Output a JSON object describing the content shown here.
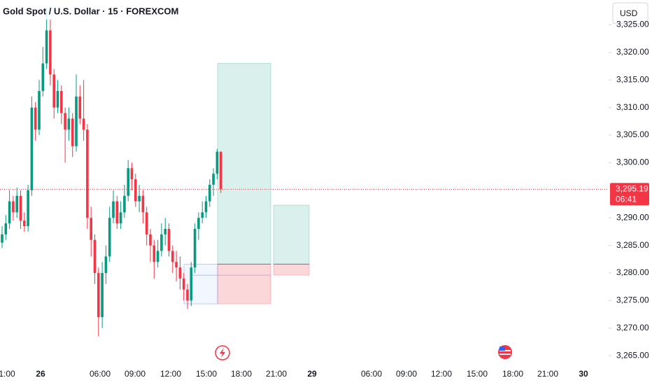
{
  "chart_data": {
    "type": "candlestick",
    "title": "Gold Spot / U.S. Dollar · 15 · FOREXCOM",
    "currency": "USD",
    "up_color": "#089981",
    "down_color": "#f23645",
    "ylim": [
      3263.5,
      3329.5
    ],
    "yticks": [
      {
        "value": 3265,
        "label": "3,265.00"
      },
      {
        "value": 3270,
        "label": "3,270.00"
      },
      {
        "value": 3275,
        "label": "3,275.00"
      },
      {
        "value": 3280,
        "label": "3,280.00"
      },
      {
        "value": 3285,
        "label": "3,285.00"
      },
      {
        "value": 3290,
        "label": "3,290.00"
      },
      {
        "value": 3300,
        "label": "3,300.00"
      },
      {
        "value": 3305,
        "label": "3,305.00"
      },
      {
        "value": 3310,
        "label": "3,310.00"
      },
      {
        "value": 3315,
        "label": "3,315.00"
      },
      {
        "value": 3320,
        "label": "3,320.00"
      },
      {
        "value": 3325,
        "label": "3,325.00"
      }
    ],
    "x_axis_labels": [
      "1:00",
      "26",
      "06:00",
      "09:00",
      "12:00",
      "15:00",
      "18:00",
      "21:00",
      "29",
      "06:00",
      "09:00",
      "12:00",
      "15:00",
      "18:00",
      "21:00",
      "30"
    ],
    "open": [
      3285.5,
      3287,
      3289,
      3293,
      3291,
      3294,
      3289.5,
      3288.5,
      3295,
      3310,
      3306,
      3313,
      3318,
      3324,
      3316,
      3310,
      3313,
      3309,
      3306,
      3308,
      3303,
      3312,
      3308,
      3306,
      3290,
      3286,
      3280,
      3272,
      3280,
      3283,
      3290,
      3293,
      3289,
      3291,
      3294,
      3299,
      3297,
      3293,
      3294,
      3291,
      3287,
      3285,
      3282,
      3284,
      3287,
      3288,
      3284,
      3282,
      3281,
      3279,
      3277,
      3275,
      3281,
      3288,
      3290,
      3291,
      3293,
      3296,
      3298,
      3302
    ],
    "high": [
      3288.5,
      3290.5,
      3295,
      3294,
      3295.5,
      3295,
      3291,
      3296,
      3312,
      3311,
      3315,
      3321,
      3328,
      3326,
      3317,
      3315,
      3314,
      3310,
      3310,
      3309,
      3316,
      3314,
      3315,
      3307,
      3292,
      3287,
      3281,
      3282,
      3285,
      3292,
      3295,
      3294,
      3293,
      3296,
      3300.5,
      3300,
      3298,
      3296,
      3295,
      3292,
      3288,
      3286,
      3286,
      3289,
      3290,
      3289,
      3285,
      3284,
      3283,
      3280,
      3278,
      3282,
      3289,
      3291,
      3293,
      3294,
      3297,
      3299,
      3302.5,
      3302
    ],
    "low": [
      3284.5,
      3286,
      3288,
      3289.5,
      3290,
      3288,
      3287.5,
      3287.5,
      3294,
      3304,
      3305,
      3312,
      3317,
      3314,
      3308,
      3309,
      3307,
      3300,
      3304,
      3301,
      3302,
      3307,
      3304,
      3288,
      3283,
      3278,
      3268.5,
      3270,
      3278,
      3282,
      3289,
      3288,
      3288,
      3290,
      3293,
      3295,
      3292,
      3291,
      3289,
      3285,
      3282,
      3279,
      3281,
      3283,
      3285,
      3283,
      3280,
      3278.5,
      3277,
      3275,
      3273.5,
      3274,
      3280,
      3286,
      3289,
      3290,
      3292,
      3294,
      3297,
      3294.5
    ],
    "close": [
      3287,
      3289,
      3293,
      3291,
      3294,
      3289.5,
      3288.5,
      3295,
      3310,
      3306,
      3313,
      3318,
      3324,
      3316,
      3310,
      3313,
      3309,
      3306,
      3308,
      3303,
      3312,
      3308,
      3306,
      3290,
      3286,
      3280,
      3272,
      3280,
      3283,
      3290,
      3293,
      3289,
      3291,
      3294,
      3299,
      3297,
      3293,
      3294,
      3291,
      3287,
      3285,
      3282,
      3284,
      3287,
      3288,
      3284,
      3282,
      3281,
      3279,
      3277,
      3275,
      3281,
      3288,
      3290,
      3291,
      3293,
      3296,
      3298,
      3302,
      3295.19
    ],
    "last_price": {
      "value": 3295.19,
      "label": "3,295.19",
      "countdown": "06:41"
    },
    "positions": [
      {
        "target": 3318,
        "entry": 3281.6,
        "stop": 3274.4
      },
      {
        "target": 3292.3,
        "entry": 3281.6,
        "stop": 3279.6
      }
    ],
    "zone": {
      "top": 3281.6,
      "bottom": 3274.4,
      "mid": 3279.6
    }
  }
}
